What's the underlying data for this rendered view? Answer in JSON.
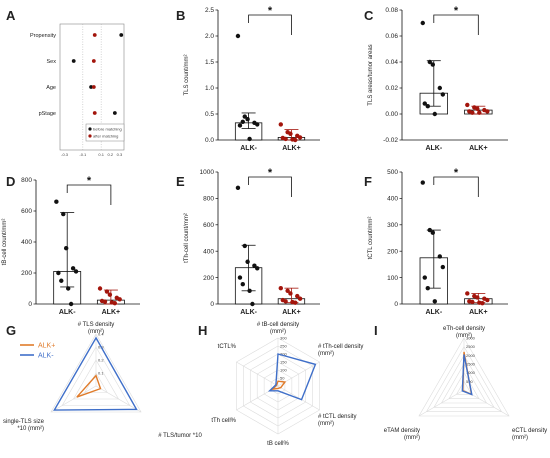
{
  "panels": {
    "A": "A",
    "B": "B",
    "C": "C",
    "D": "D",
    "E": "E",
    "F": "F",
    "G": "G",
    "H": "H",
    "I": "I"
  },
  "colors": {
    "black": "#111111",
    "red": "#a3150c",
    "orange": "#e07b2a",
    "blue": "#3f6fc9",
    "grid": "#dddddd"
  },
  "chart_data": [
    {
      "panel": "A",
      "type": "scatter",
      "categories": [
        "Propensity",
        "Sex",
        "Age",
        "pStage"
      ],
      "x_ticks": [
        "-0.3",
        "-0.1",
        "0.1",
        "0.2",
        "0.3"
      ],
      "xlim": [
        -0.35,
        0.35
      ],
      "series": [
        {
          "name": "before matching",
          "values": [
            0.32,
            -0.2,
            -0.01,
            0.25
          ]
        },
        {
          "name": "after matching",
          "values": [
            0.03,
            0.02,
            0.02,
            0.03
          ]
        }
      ],
      "legend": "bottom-right"
    },
    {
      "panel": "B",
      "type": "bar",
      "categories": [
        "ALK-",
        "ALK+"
      ],
      "ylabel": "TLS count/mm²",
      "ylim": [
        0,
        2.5
      ],
      "y_ticks": [
        "0.0",
        "0.5",
        "1.0",
        "1.5",
        "2.0",
        "2.5"
      ],
      "y_tick_values": [
        0,
        0.5,
        1,
        1.5,
        2,
        2.5
      ],
      "bar_values": [
        0.33,
        0.05
      ],
      "error_high": [
        0.52,
        0.2
      ],
      "error_low": [
        0.22,
        0.0
      ],
      "points": [
        [
          2.0,
          0.45,
          0.4,
          0.33,
          0.3,
          0.28,
          0.35,
          0.02
        ],
        [
          0.3,
          0.15,
          0.12,
          0.08,
          0.05,
          0.04,
          0.02,
          0.01,
          0.0
        ]
      ],
      "significance": "*"
    },
    {
      "panel": "C",
      "type": "bar",
      "categories": [
        "ALK-",
        "ALK+"
      ],
      "ylabel": "TLS areas/tumor areas",
      "ylim": [
        -0.02,
        0.08
      ],
      "y_ticks": [
        "-0.02",
        "0.00",
        "0.02",
        "0.04",
        "0.06",
        "0.08"
      ],
      "y_tick_values": [
        -0.02,
        0,
        0.02,
        0.04,
        0.06,
        0.08
      ],
      "bar_values": [
        0.016,
        0.003
      ],
      "error_high": [
        0.041,
        0.006
      ],
      "error_low": [
        0.006,
        0.0
      ],
      "points": [
        [
          0.07,
          0.04,
          0.038,
          0.02,
          0.015,
          0.008,
          0.006,
          0.0
        ],
        [
          0.007,
          0.005,
          0.004,
          0.003,
          0.002,
          0.002,
          0.001,
          0.001
        ]
      ],
      "significance": "*"
    },
    {
      "panel": "D",
      "type": "bar",
      "categories": [
        "ALK-",
        "ALK+"
      ],
      "ylabel": "tB-cell count/mm²",
      "ylim": [
        0,
        800
      ],
      "y_ticks": [
        "0",
        "200",
        "400",
        "600",
        "800"
      ],
      "y_tick_values": [
        0,
        200,
        400,
        600,
        800
      ],
      "bar_values": [
        210,
        25
      ],
      "error_high": [
        590,
        90
      ],
      "error_low": [
        110,
        0
      ],
      "points": [
        [
          660,
          580,
          360,
          230,
          210,
          200,
          150,
          100,
          0
        ],
        [
          100,
          80,
          60,
          40,
          30,
          20,
          15,
          10,
          5
        ]
      ],
      "significance": "*"
    },
    {
      "panel": "E",
      "type": "bar",
      "categories": [
        "ALK-",
        "ALK+"
      ],
      "ylabel": "tTh-cell count/mm²",
      "ylim": [
        0,
        1000
      ],
      "y_ticks": [
        "0",
        "200",
        "400",
        "600",
        "800",
        "1000"
      ],
      "y_tick_values": [
        0,
        200,
        400,
        600,
        800,
        1000
      ],
      "bar_values": [
        275,
        40
      ],
      "error_high": [
        445,
        120
      ],
      "error_low": [
        100,
        10
      ],
      "points": [
        [
          880,
          440,
          320,
          290,
          270,
          200,
          150,
          100,
          0
        ],
        [
          120,
          100,
          80,
          60,
          40,
          30,
          20,
          15,
          10
        ]
      ],
      "significance": "*"
    },
    {
      "panel": "F",
      "type": "bar",
      "categories": [
        "ALK-",
        "ALK+"
      ],
      "ylabel": "tCTL count/mm²",
      "ylim": [
        0,
        500
      ],
      "y_ticks": [
        "0",
        "100",
        "200",
        "300",
        "400",
        "500"
      ],
      "y_tick_values": [
        0,
        100,
        200,
        300,
        400,
        500
      ],
      "bar_values": [
        175,
        20
      ],
      "error_high": [
        280,
        40
      ],
      "error_low": [
        60,
        5
      ],
      "points": [
        [
          460,
          280,
          270,
          180,
          140,
          100,
          60,
          10
        ],
        [
          40,
          30,
          25,
          20,
          15,
          10,
          8,
          5,
          3
        ]
      ],
      "significance": "*"
    },
    {
      "panel": "G",
      "type": "radar",
      "axes": [
        "# TLS density\n(mm²)",
        "# TLS/tumor *10",
        "single-TLS size\n*10 (mm²)"
      ],
      "max": 0.4,
      "ring_labels": [
        "0.4",
        "0.3",
        "0.2",
        "0.1"
      ],
      "series": [
        {
          "name": "ALK+",
          "values": [
            0.08,
            0.04,
            0.17
          ]
        },
        {
          "name": "ALK-",
          "values": [
            0.37,
            0.36,
            0.37
          ]
        }
      ],
      "legend": "top-left"
    },
    {
      "panel": "H",
      "type": "radar",
      "axes": [
        "# tB-cell density\n(mm²)",
        "# tTh-cell density\n(mm²)",
        "# tCTL density\n(mm²)",
        "tB cell%",
        "tTh cell%",
        "tCTL%"
      ],
      "max": 300,
      "ring_labels": [
        "300",
        "250",
        "200",
        "150",
        "100",
        "50"
      ],
      "series": [
        {
          "name": "ALK+",
          "values": [
            30,
            50,
            20,
            15,
            40,
            10
          ]
        },
        {
          "name": "ALK-",
          "values": [
            200,
            270,
            170,
            30,
            60,
            15
          ]
        }
      ]
    },
    {
      "panel": "I",
      "type": "radar",
      "axes": [
        "eTh-cell density\n(mm²)",
        "eCTL density\n(mm²)",
        "eTAM density\n(mm²)"
      ],
      "max": 3000,
      "ring_labels": [
        "3000",
        "2500",
        "2000",
        "1500",
        "1000",
        "500"
      ],
      "series": [
        {
          "name": "ALK+",
          "values": [
            2200,
            500,
            80
          ]
        },
        {
          "name": "ALK-",
          "values": [
            2050,
            520,
            110
          ]
        }
      ]
    }
  ]
}
